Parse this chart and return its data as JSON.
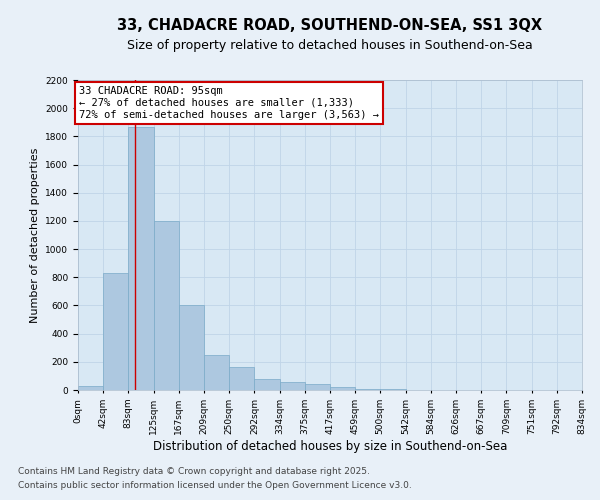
{
  "title1": "33, CHADACRE ROAD, SOUTHEND-ON-SEA, SS1 3QX",
  "title2": "Size of property relative to detached houses in Southend-on-Sea",
  "xlabel": "Distribution of detached houses by size in Southend-on-Sea",
  "ylabel": "Number of detached properties",
  "bar_values": [
    30,
    830,
    1870,
    1200,
    600,
    250,
    160,
    75,
    60,
    40,
    20,
    5,
    5,
    3,
    2,
    1,
    0,
    0,
    1,
    0
  ],
  "bin_edges": [
    0,
    42,
    83,
    125,
    167,
    209,
    250,
    292,
    334,
    375,
    417,
    459,
    500,
    542,
    584,
    626,
    667,
    709,
    751,
    792,
    834
  ],
  "tick_labels": [
    "0sqm",
    "42sqm",
    "83sqm",
    "125sqm",
    "167sqm",
    "209sqm",
    "250sqm",
    "292sqm",
    "334sqm",
    "375sqm",
    "417sqm",
    "459sqm",
    "500sqm",
    "542sqm",
    "584sqm",
    "626sqm",
    "667sqm",
    "709sqm",
    "751sqm",
    "792sqm",
    "834sqm"
  ],
  "bar_color": "#adc8e0",
  "bar_edge_color": "#7aaac8",
  "grid_color": "#c0d4e8",
  "bg_color": "#d8e8f4",
  "fig_bg_color": "#e8f0f8",
  "annotation_box_text": "33 CHADACRE ROAD: 95sqm\n← 27% of detached houses are smaller (1,333)\n72% of semi-detached houses are larger (3,563) →",
  "vline_x": 95,
  "vline_color": "#cc0000",
  "ylim": [
    0,
    2200
  ],
  "yticks": [
    0,
    200,
    400,
    600,
    800,
    1000,
    1200,
    1400,
    1600,
    1800,
    2000,
    2200
  ],
  "footer1": "Contains HM Land Registry data © Crown copyright and database right 2025.",
  "footer2": "Contains public sector information licensed under the Open Government Licence v3.0.",
  "title1_fontsize": 10.5,
  "title2_fontsize": 9,
  "xlabel_fontsize": 8.5,
  "ylabel_fontsize": 8,
  "tick_fontsize": 6.5,
  "annotation_fontsize": 7.5,
  "footer_fontsize": 6.5
}
